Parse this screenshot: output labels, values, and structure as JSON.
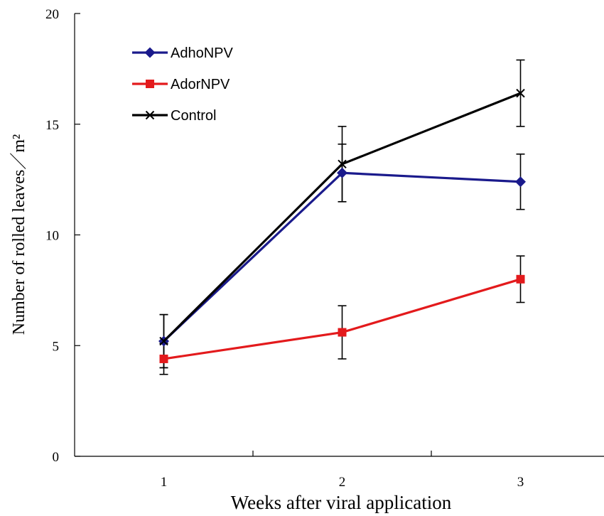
{
  "chart_data": {
    "type": "line",
    "title": "",
    "xlabel": "Weeks after viral application",
    "ylabel": "Number of rolled leaves／m²",
    "x": [
      1,
      2,
      3
    ],
    "x_tick_labels": [
      "1",
      "2",
      "3"
    ],
    "xlim": [
      0.5,
      3.5
    ],
    "ylim": [
      0,
      20
    ],
    "y_ticks": [
      0,
      5,
      10,
      15,
      20
    ],
    "y_tick_labels": [
      "0",
      "5",
      "10",
      "15",
      "20"
    ],
    "grid": false,
    "legend_position": "top-left",
    "series": [
      {
        "name": "AdhoNPV",
        "color": "#1a1a8c",
        "marker": "diamond",
        "values": [
          5.2,
          12.8,
          12.4
        ],
        "error": [
          1.2,
          1.3,
          1.25
        ]
      },
      {
        "name": "AdorNPV",
        "color": "#e31a1c",
        "marker": "square",
        "values": [
          4.4,
          5.6,
          8.0
        ],
        "error": [
          0.7,
          1.2,
          1.05
        ]
      },
      {
        "name": "Control",
        "color": "#000000",
        "marker": "x",
        "values": [
          5.2,
          13.2,
          16.4
        ],
        "error": [
          1.2,
          1.7,
          1.5
        ]
      }
    ]
  }
}
